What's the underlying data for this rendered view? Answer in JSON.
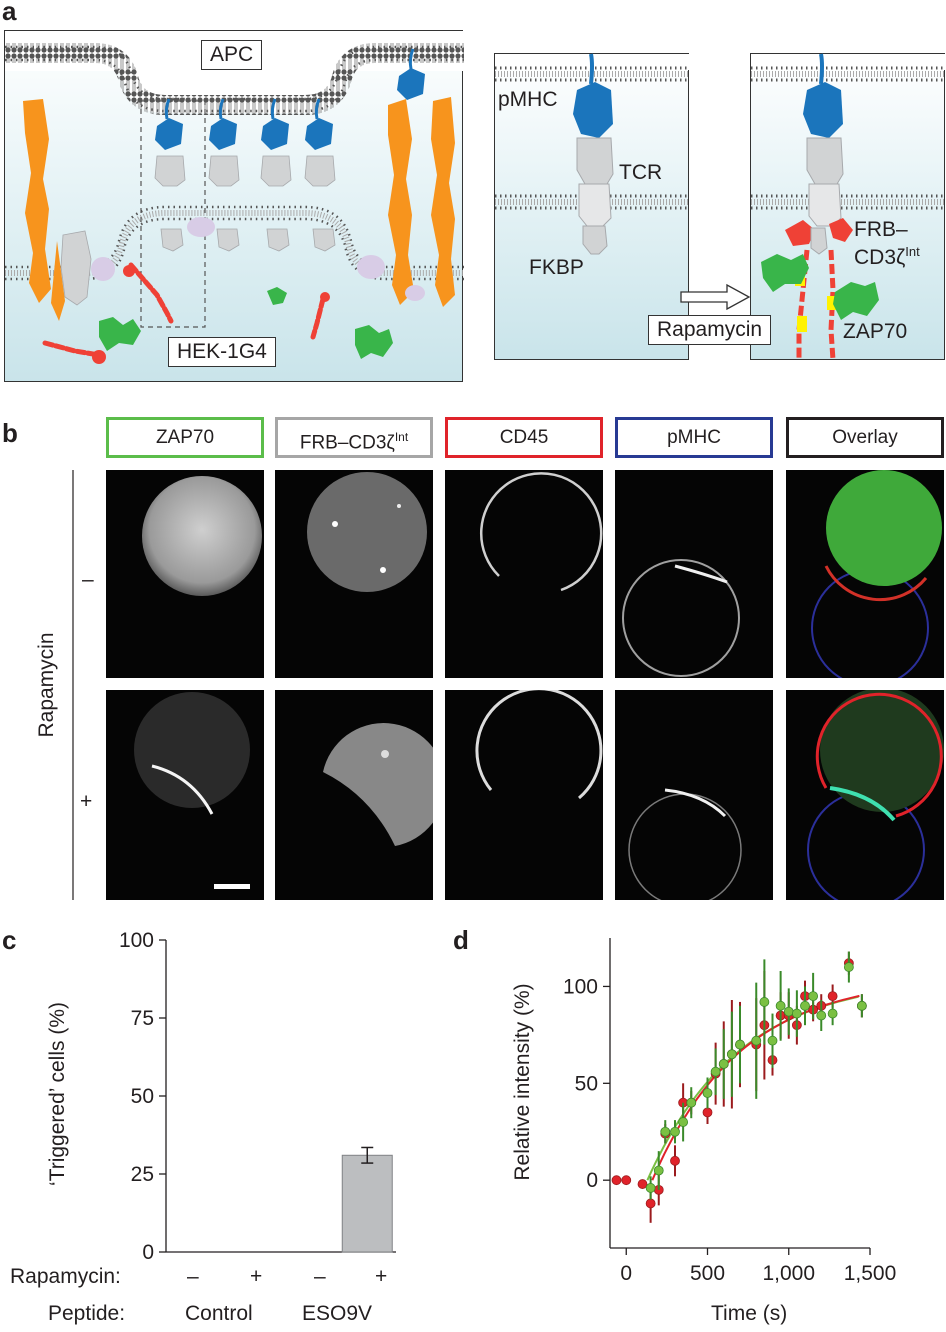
{
  "panels": {
    "a": "a",
    "b": "b",
    "c": "c",
    "d": "d"
  },
  "panel_a": {
    "left": {
      "apc": "APC",
      "hek": "HEK-1G4"
    },
    "right": {
      "pmhc": "pMHC",
      "tcr": "TCR",
      "fkbp": "FKBP",
      "rapamycin": "Rapamycin",
      "frb_line1": "FRB–",
      "frb_line2": "CD3ζ",
      "frb_sup": "Int",
      "zap70": "ZAP70"
    }
  },
  "panel_b": {
    "channels": [
      {
        "label": "ZAP70",
        "color": "#5bbd4a"
      },
      {
        "label": "FRB–CD3ζ",
        "sup": "Int",
        "color": "#a6a6a6"
      },
      {
        "label": "CD45",
        "color": "#e0232a"
      },
      {
        "label": "pMHC",
        "color": "#283a93"
      },
      {
        "label": "Overlay",
        "color": "#231f20"
      }
    ],
    "row_axis_label": "Rapamycin",
    "rows": [
      "–",
      "+"
    ]
  },
  "panel_c": {
    "row_labels": {
      "rapamycin": "Rapamycin:",
      "peptide": "Peptide:"
    },
    "rapamycin_signs": [
      "–",
      "+",
      "–",
      "+"
    ],
    "peptide_groups": [
      "Control",
      "ESO9V"
    ],
    "bar_color": "#bcbec0"
  },
  "panel_d": {
    "green": "#7bc043",
    "red": "#e0232a"
  },
  "chart_data": [
    {
      "type": "bar",
      "categories": [
        "Control –",
        "Control +",
        "ESO9V –",
        "ESO9V +"
      ],
      "values": [
        0,
        0,
        0,
        31
      ],
      "errors": [
        0,
        0,
        0,
        2.5
      ],
      "ylabel": "‘Triggered’ cells (%)",
      "ylim": [
        0,
        100
      ],
      "yticks": [
        "0",
        "25",
        "50",
        "75",
        "100"
      ],
      "grid": false
    },
    {
      "type": "scatter",
      "xlabel": "Time (s)",
      "ylabel": "Relative intensity (%)",
      "xlim": [
        -100,
        1500
      ],
      "ylim": [
        -35,
        125
      ],
      "xticks": [
        "0",
        "500",
        "1,000",
        "1,500"
      ],
      "yticks": [
        "0",
        "50",
        "100"
      ],
      "series": [
        {
          "color": "red",
          "x": [
            -60,
            0,
            100,
            150,
            200,
            240,
            300,
            350,
            400,
            500,
            550,
            600,
            650,
            700,
            800,
            850,
            900,
            950,
            1000,
            1050,
            1100,
            1150,
            1200,
            1270,
            1370,
            1450
          ],
          "y": [
            0,
            0,
            -2,
            -12,
            -5,
            24,
            10,
            40,
            40,
            35,
            55,
            60,
            65,
            70,
            70,
            80,
            62,
            85,
            85,
            80,
            95,
            88,
            90,
            95,
            112,
            90
          ],
          "err": [
            0,
            0,
            0,
            10,
            8,
            5,
            8,
            10,
            6,
            6,
            16,
            22,
            28,
            22,
            24,
            28,
            8,
            12,
            12,
            10,
            8,
            6,
            6,
            6,
            6,
            6
          ]
        },
        {
          "color": "green",
          "x": [
            150,
            200,
            240,
            300,
            350,
            400,
            500,
            550,
            600,
            650,
            700,
            800,
            850,
            900,
            950,
            1000,
            1050,
            1100,
            1150,
            1200,
            1270,
            1370,
            1450
          ],
          "y": [
            -4,
            5,
            25,
            25,
            30,
            40,
            45,
            56,
            60,
            65,
            70,
            72,
            92,
            72,
            90,
            87,
            86,
            90,
            95,
            85,
            86,
            110,
            90
          ],
          "err": [
            6,
            10,
            6,
            6,
            10,
            8,
            8,
            12,
            18,
            22,
            20,
            30,
            22,
            14,
            18,
            12,
            12,
            10,
            12,
            8,
            6,
            8,
            6
          ]
        }
      ],
      "fits": [
        "red",
        "green"
      ],
      "grid": false
    }
  ]
}
